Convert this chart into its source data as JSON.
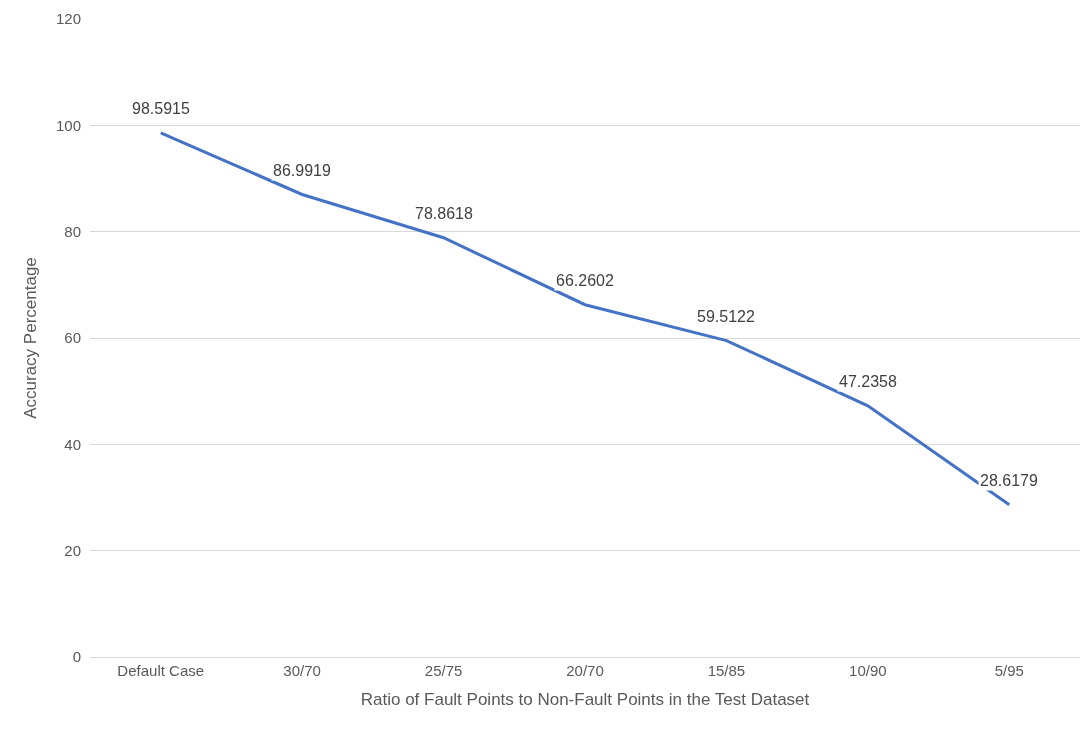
{
  "chart_data": {
    "type": "line",
    "xlabel": "Ratio of Fault Points to Non-Fault Points in the Test Dataset",
    "ylabel": "Accuracy Percentage",
    "categories": [
      "Default Case",
      "30/70",
      "25/75",
      "20/70",
      "15/85",
      "10/90",
      "5/95"
    ],
    "series": [
      {
        "color": "#4472c4",
        "values": [
          98.5915,
          86.9919,
          78.8618,
          66.2602,
          59.5122,
          47.2358,
          28.6179
        ]
      }
    ],
    "ylim": [
      0,
      120
    ],
    "yticks": [
      0,
      20,
      40,
      60,
      80,
      100,
      120
    ],
    "grid": "y",
    "marker": "none",
    "line_style": "solid",
    "data_labels": true
  }
}
